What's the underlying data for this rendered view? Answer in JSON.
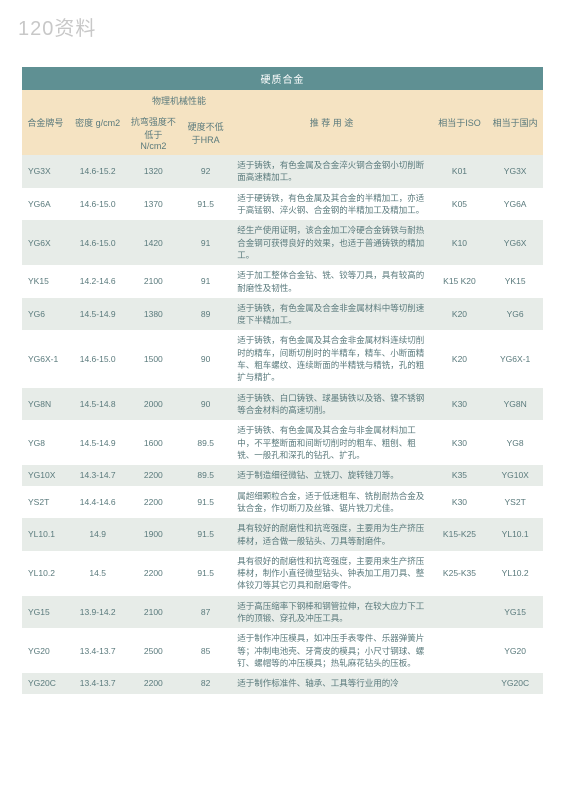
{
  "page_header": "120资料",
  "table_title": "硬质合金",
  "header": {
    "code": "合金牌号",
    "group": "物理机械性能",
    "density": "密度 g/cm2",
    "bend": "抗弯强度不低于 N/cm2",
    "hard": "硬度不低于HRA",
    "use": "推 荐 用 途",
    "iso": "相当于ISO",
    "dom": "相当于国内"
  },
  "rows": [
    {
      "code": "YG3X",
      "density": "14.6-15.2",
      "bend": "1320",
      "hard": "92",
      "use": "适于铸铁，有色金属及合金淬火钢合金钢小切削断面高速精加工。",
      "iso": "K01",
      "dom": "YG3X"
    },
    {
      "code": "YG6A",
      "density": "14.6-15.0",
      "bend": "1370",
      "hard": "91.5",
      "use": "适于硬铸铁，有色金属及其合金的半精加工，亦适于高锰钢、淬火钢、合金钢的半精加工及精加工。",
      "iso": "K05",
      "dom": "YG6A"
    },
    {
      "code": "YG6X",
      "density": "14.6-15.0",
      "bend": "1420",
      "hard": "91",
      "use": "经生产使用证明，该合金加工冷硬合金铸铁与耐热合金钢可获得良好的效果，也适于普通铸铁的精加工。",
      "iso": "K10",
      "dom": "YG6X"
    },
    {
      "code": "YK15",
      "density": "14.2-14.6",
      "bend": "2100",
      "hard": "91",
      "use": "适于加工整体合金钻、铣、铰等刀具，具有较高的耐磨性及韧性。",
      "iso": "K15 K20",
      "dom": "YK15"
    },
    {
      "code": "YG6",
      "density": "14.5-14.9",
      "bend": "1380",
      "hard": "89",
      "use": "适于铸铁，有色金属及合金非金属材料中等切削速度下半精加工。",
      "iso": "K20",
      "dom": "YG6"
    },
    {
      "code": "YG6X-1",
      "density": "14.6-15.0",
      "bend": "1500",
      "hard": "90",
      "use": "适于铸铁，有色金属及其合金非金属材料连续切削时的精车，间断切削时的半精车，精车、小断面精车、粗车螺纹、连续断面的半精铣与精铣，孔的粗扩与精扩。",
      "iso": "K20",
      "dom": "YG6X-1"
    },
    {
      "code": "YG8N",
      "density": "14.5-14.8",
      "bend": "2000",
      "hard": "90",
      "use": "适于铸铁、白口铸铁、球墨铸铁以及铬、镍不锈钢等合金材料的高速切削。",
      "iso": "K30",
      "dom": "YG8N"
    },
    {
      "code": "YG8",
      "density": "14.5-14.9",
      "bend": "1600",
      "hard": "89.5",
      "use": "适于铸铁、有色金属及其合金与非金属材料加工中，不平整断面和间断切削时的粗车、粗刨、粗铣、一般孔和深孔的钻孔、扩孔。",
      "iso": "K30",
      "dom": "YG8"
    },
    {
      "code": "YG10X",
      "density": "14.3-14.7",
      "bend": "2200",
      "hard": "89.5",
      "use": "适于制造细径微钻、立铣刀、旋转锉刀等。",
      "iso": "K35",
      "dom": "YG10X"
    },
    {
      "code": "YS2T",
      "density": "14.4-14.6",
      "bend": "2200",
      "hard": "91.5",
      "use": "属超细颗粒合金，适于低速粗车、铣削耐热合金及钛合金，作切断刀及丝锥、锯片铣刀尤佳。",
      "iso": "K30",
      "dom": "YS2T"
    },
    {
      "code": "YL10.1",
      "density": "14.9",
      "bend": "1900",
      "hard": "91.5",
      "use": "具有较好的耐磨性和抗弯强度，主要用为生产挤压棒材，适合做一般钻头、刀具等耐磨件。",
      "iso": "K15-K25",
      "dom": "YL10.1"
    },
    {
      "code": "YL10.2",
      "density": "14.5",
      "bend": "2200",
      "hard": "91.5",
      "use": "具有很好的耐磨性和抗弯强度，主要用来生产挤压棒材，制作小直径微型钻头、钟表加工用刀具、整体铰刀等其它刃具和耐磨零件。",
      "iso": "K25-K35",
      "dom": "YL10.2"
    },
    {
      "code": "YG15",
      "density": "13.9-14.2",
      "bend": "2100",
      "hard": "87",
      "use": "适于高压缩率下钢棒和钢管拉伸，在较大应力下工作的顶锻、穿孔及冲压工具。",
      "iso": "",
      "dom": "YG15"
    },
    {
      "code": "YG20",
      "density": "13.4-13.7",
      "bend": "2500",
      "hard": "85",
      "use": "适于制作冲压模具，如冲压手表零件、乐器弹簧片等；冲制电池壳、牙膏皮的模具；小尺寸钢球、螺钉、螺帽等的冲压模具；热轧麻花钻头的压板。",
      "iso": "",
      "dom": "YG20"
    },
    {
      "code": "YG20C",
      "density": "13.4-13.7",
      "bend": "2200",
      "hard": "82",
      "use": "适于制作标准件、轴承、工具等行业用的冷",
      "iso": "",
      "dom": "YG20C"
    }
  ]
}
